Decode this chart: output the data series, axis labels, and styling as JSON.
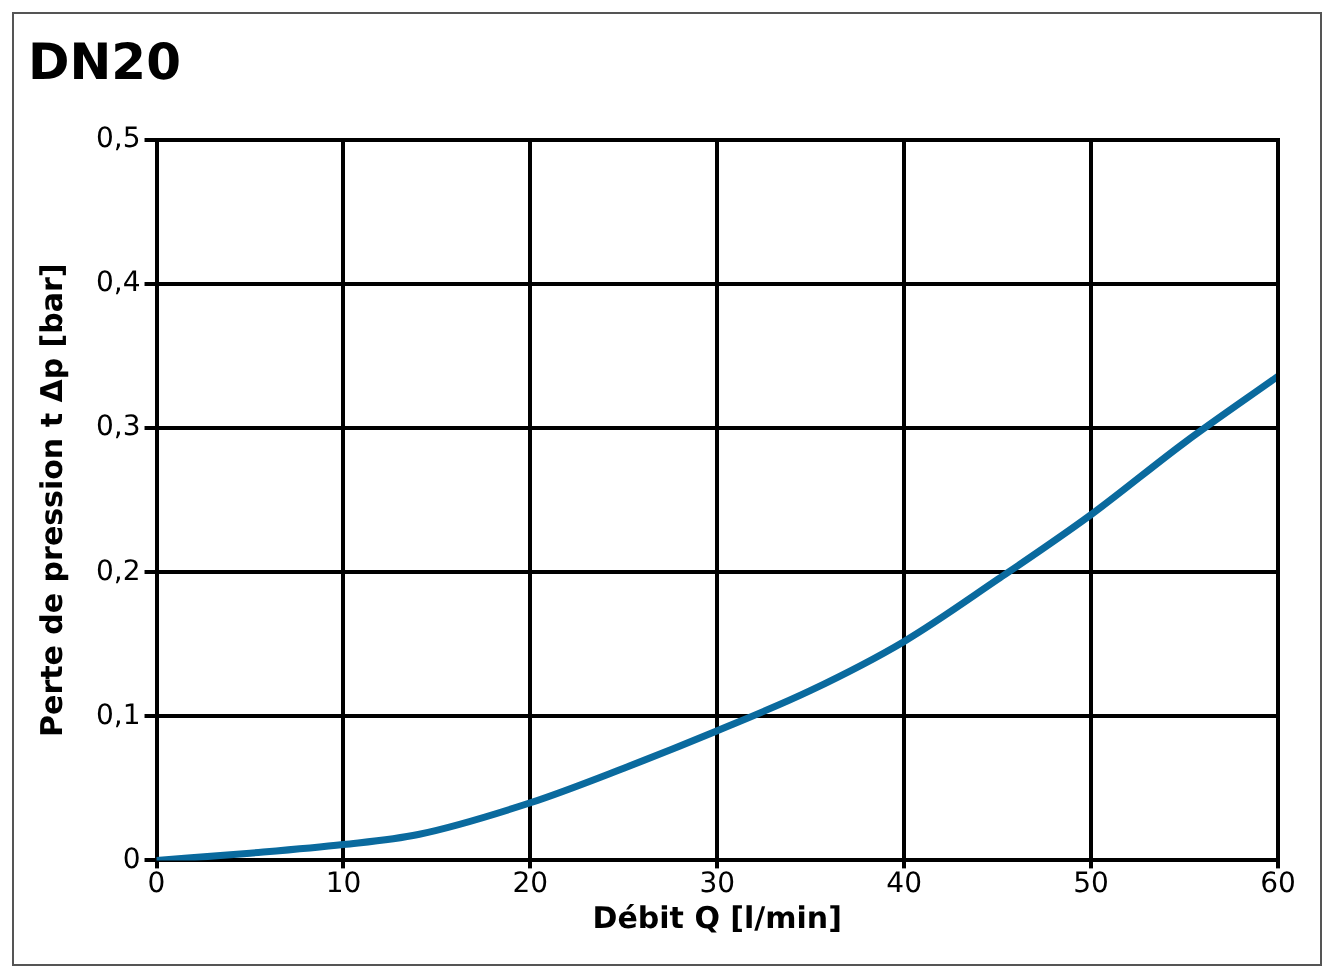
{
  "chart_data": {
    "type": "line",
    "title": "DN20",
    "xlabel": "Débit Q [l/min]",
    "ylabel": "Perte de pression t Δp [bar]",
    "x": [
      0,
      5,
      10,
      14,
      20,
      25,
      30,
      35,
      40,
      45,
      50,
      55,
      60
    ],
    "series": [
      {
        "color": "#0a6a9e",
        "values": [
          0,
          0.005,
          0.011,
          0.018,
          0.04,
          0.064,
          0.09,
          0.118,
          0.152,
          0.195,
          0.24,
          0.29,
          0.336
        ]
      }
    ],
    "xlim": [
      0,
      60
    ],
    "xticks": [
      0,
      10,
      20,
      30,
      40,
      50,
      60
    ],
    "ylim": [
      0,
      0.5
    ],
    "yticks": [
      0,
      {
        "value": 0.1,
        "label": "0,1"
      },
      {
        "value": 0.2,
        "label": "0,2"
      },
      {
        "value": 0.3,
        "label": "0,3"
      },
      {
        "value": 0.4,
        "label": "0,4"
      },
      {
        "value": 0.5,
        "label": "0,5"
      }
    ],
    "grid": true,
    "legend": false,
    "marker": "none",
    "line_style": "solid"
  }
}
